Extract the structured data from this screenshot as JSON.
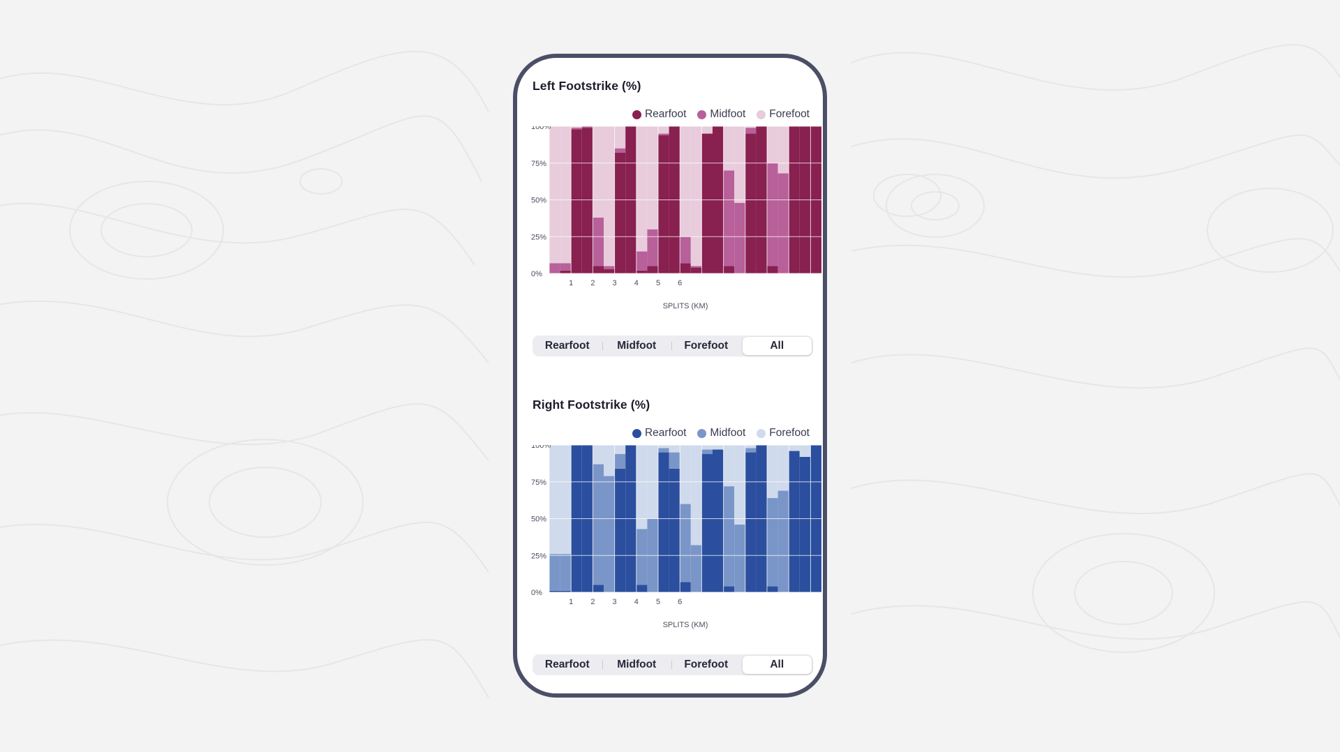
{
  "segment_options": [
    "Rearfoot",
    "Midfoot",
    "Forefoot",
    "All"
  ],
  "segment_selected": "All",
  "charts": [
    {
      "title": "Left Footstrike (%)",
      "colors": {
        "Rearfoot": "#882050",
        "Midfoot": "#b8609a",
        "Forefoot": "#e8ccdc"
      },
      "legend": [
        "Rearfoot",
        "Midfoot",
        "Forefoot"
      ]
    },
    {
      "title": "Right Footstrike (%)",
      "colors": {
        "Rearfoot": "#2b4f9e",
        "Midfoot": "#7a96c8",
        "Forefoot": "#cfdaec"
      },
      "legend": [
        "Rearfoot",
        "Midfoot",
        "Forefoot"
      ]
    }
  ],
  "chart_data": [
    {
      "type": "bar",
      "stacked": true,
      "title": "Left Footstrike (%)",
      "xlabel": "SPLITS (KM)",
      "ylabel": "",
      "ylim": [
        0,
        100
      ],
      "yticks": [
        "0%",
        "25%",
        "50%",
        "75%",
        "100%"
      ],
      "xticks": [
        "1",
        "2",
        "3",
        "4",
        "5",
        "6"
      ],
      "grid": true,
      "legend_position": "top-right",
      "bins_per_split": 2,
      "series": [
        {
          "name": "Rearfoot",
          "values": [
            0,
            2,
            98,
            99,
            5,
            3,
            82,
            100,
            2,
            5,
            94,
            100,
            7,
            4,
            95,
            100,
            5,
            0,
            95,
            100,
            5,
            0,
            100,
            100,
            100
          ]
        },
        {
          "name": "Midfoot",
          "values": [
            7,
            5,
            1,
            1,
            33,
            2,
            3,
            0,
            13,
            25,
            1,
            0,
            18,
            1,
            0,
            0,
            65,
            48,
            4,
            0,
            70,
            68,
            0,
            0,
            0
          ]
        },
        {
          "name": "Forefoot",
          "values": [
            93,
            93,
            1,
            0,
            62,
            95,
            15,
            0,
            85,
            70,
            5,
            0,
            75,
            95,
            5,
            0,
            30,
            52,
            1,
            0,
            25,
            32,
            0,
            0,
            0
          ]
        }
      ]
    },
    {
      "type": "bar",
      "stacked": true,
      "title": "Right Footstrike (%)",
      "xlabel": "SPLITS (KM)",
      "ylabel": "",
      "ylim": [
        0,
        100
      ],
      "yticks": [
        "0%",
        "25%",
        "50%",
        "75%",
        "100%"
      ],
      "xticks": [
        "1",
        "2",
        "3",
        "4",
        "5",
        "6"
      ],
      "grid": true,
      "legend_position": "top-right",
      "bins_per_split": 2,
      "series": [
        {
          "name": "Rearfoot",
          "values": [
            1,
            1,
            100,
            100,
            5,
            0,
            84,
            100,
            5,
            0,
            95,
            84,
            7,
            0,
            94,
            97,
            4,
            0,
            95,
            100,
            4,
            0,
            96,
            92,
            100
          ]
        },
        {
          "name": "Midfoot",
          "values": [
            25,
            25,
            0,
            0,
            82,
            79,
            10,
            0,
            38,
            50,
            3,
            11,
            53,
            32,
            3,
            0,
            68,
            46,
            3,
            0,
            60,
            69,
            0,
            0,
            0
          ]
        },
        {
          "name": "Forefoot",
          "values": [
            74,
            74,
            0,
            0,
            13,
            21,
            6,
            0,
            57,
            50,
            2,
            5,
            40,
            68,
            3,
            3,
            28,
            54,
            2,
            0,
            36,
            31,
            4,
            8,
            0
          ]
        }
      ]
    }
  ]
}
